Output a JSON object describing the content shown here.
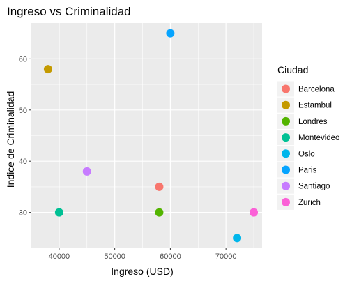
{
  "chart_data": {
    "type": "scatter",
    "title": "Ingreso vs Criminalidad",
    "xlabel": "Ingreso (USD)",
    "ylabel": "Indice de Criminalidad",
    "xlim": [
      35000,
      76500
    ],
    "ylim": [
      23,
      67
    ],
    "x_ticks": [
      40000,
      50000,
      60000,
      70000
    ],
    "y_ticks": [
      30,
      40,
      50,
      60
    ],
    "grid": true,
    "legend_position": "right",
    "legend_title": "Ciudad",
    "series": [
      {
        "name": "Barcelona",
        "color": "#F8766D",
        "x": [
          58000
        ],
        "y": [
          35
        ]
      },
      {
        "name": "Estambul",
        "color": "#C49A00",
        "x": [
          38000
        ],
        "y": [
          58
        ]
      },
      {
        "name": "Londres",
        "color": "#53B400",
        "x": [
          58000
        ],
        "y": [
          30
        ]
      },
      {
        "name": "Montevideo",
        "color": "#00C094",
        "x": [
          40000
        ],
        "y": [
          30
        ]
      },
      {
        "name": "Oslo",
        "color": "#00B6EB",
        "x": [
          72000
        ],
        "y": [
          25
        ]
      },
      {
        "name": "Paris",
        "color": "#06A4FF",
        "x": [
          60000
        ],
        "y": [
          65
        ]
      },
      {
        "name": "Santiago",
        "color": "#C77CFF",
        "x": [
          45000
        ],
        "y": [
          38
        ]
      },
      {
        "name": "Zurich",
        "color": "#FB61D7",
        "x": [
          75000
        ],
        "y": [
          30
        ]
      }
    ]
  }
}
